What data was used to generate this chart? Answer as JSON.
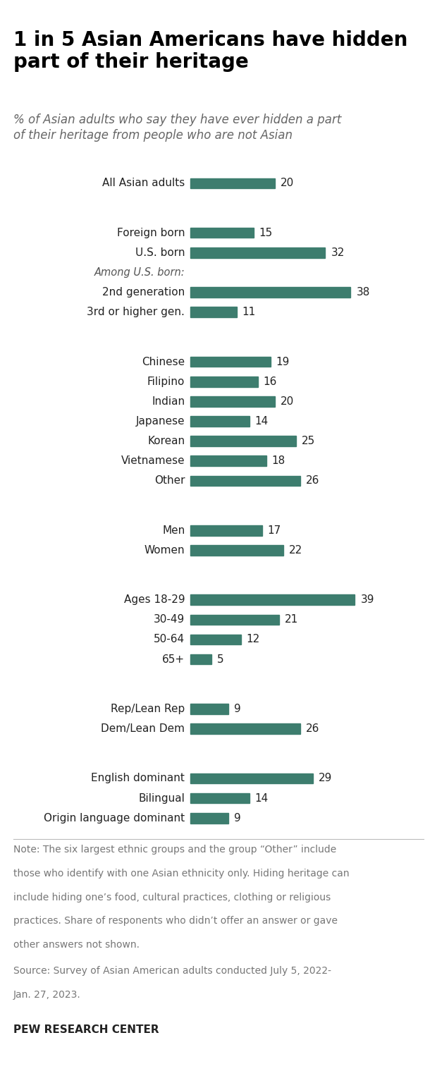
{
  "title": "1 in 5 Asian Americans have hidden\npart of their heritage",
  "subtitle": "% of Asian adults who say they have ever hidden a part\nof their heritage from people who are not Asian",
  "bar_color": "#3d7d6e",
  "background_color": "#ffffff",
  "group_structure": [
    [
      [
        "All Asian adults",
        20
      ]
    ],
    [
      [
        "Foreign born",
        15
      ],
      [
        "U.S. born",
        32
      ],
      [
        "_italic_Among U.S. born:",
        null
      ],
      [
        "2nd generation",
        38
      ],
      [
        "3rd or higher gen.",
        11
      ]
    ],
    [
      [
        "Chinese",
        19
      ],
      [
        "Filipino",
        16
      ],
      [
        "Indian",
        20
      ],
      [
        "Japanese",
        14
      ],
      [
        "Korean",
        25
      ],
      [
        "Vietnamese",
        18
      ],
      [
        "Other",
        26
      ]
    ],
    [
      [
        "Men",
        17
      ],
      [
        "Women",
        22
      ]
    ],
    [
      [
        "Ages 18-29",
        39
      ],
      [
        "30-49",
        21
      ],
      [
        "50-64",
        12
      ],
      [
        "65+",
        5
      ]
    ],
    [
      [
        "Rep/Lean Rep",
        9
      ],
      [
        "Dem/Lean Dem",
        26
      ]
    ],
    [
      [
        "English dominant",
        29
      ],
      [
        "Bilingual",
        14
      ],
      [
        "Origin language dominant",
        9
      ]
    ]
  ],
  "note_text": "Note: The six largest ethnic groups and the group “Other” include those who identify with one Asian ethnicity only. Hiding heritage can include hiding one’s food, cultural practices, clothing or religious practices. Share of responents who didn’t offer an answer or gave other answers not shown.",
  "source_text": "Source: Survey of Asian American adults conducted July 5, 2022-\nJan. 27, 2023.",
  "footer_text": "PEW RESEARCH CENTER",
  "bar_max_val": 45,
  "title_fontsize": 20,
  "subtitle_fontsize": 12,
  "label_fontsize": 11,
  "value_fontsize": 11,
  "note_fontsize": 10,
  "footer_fontsize": 11
}
